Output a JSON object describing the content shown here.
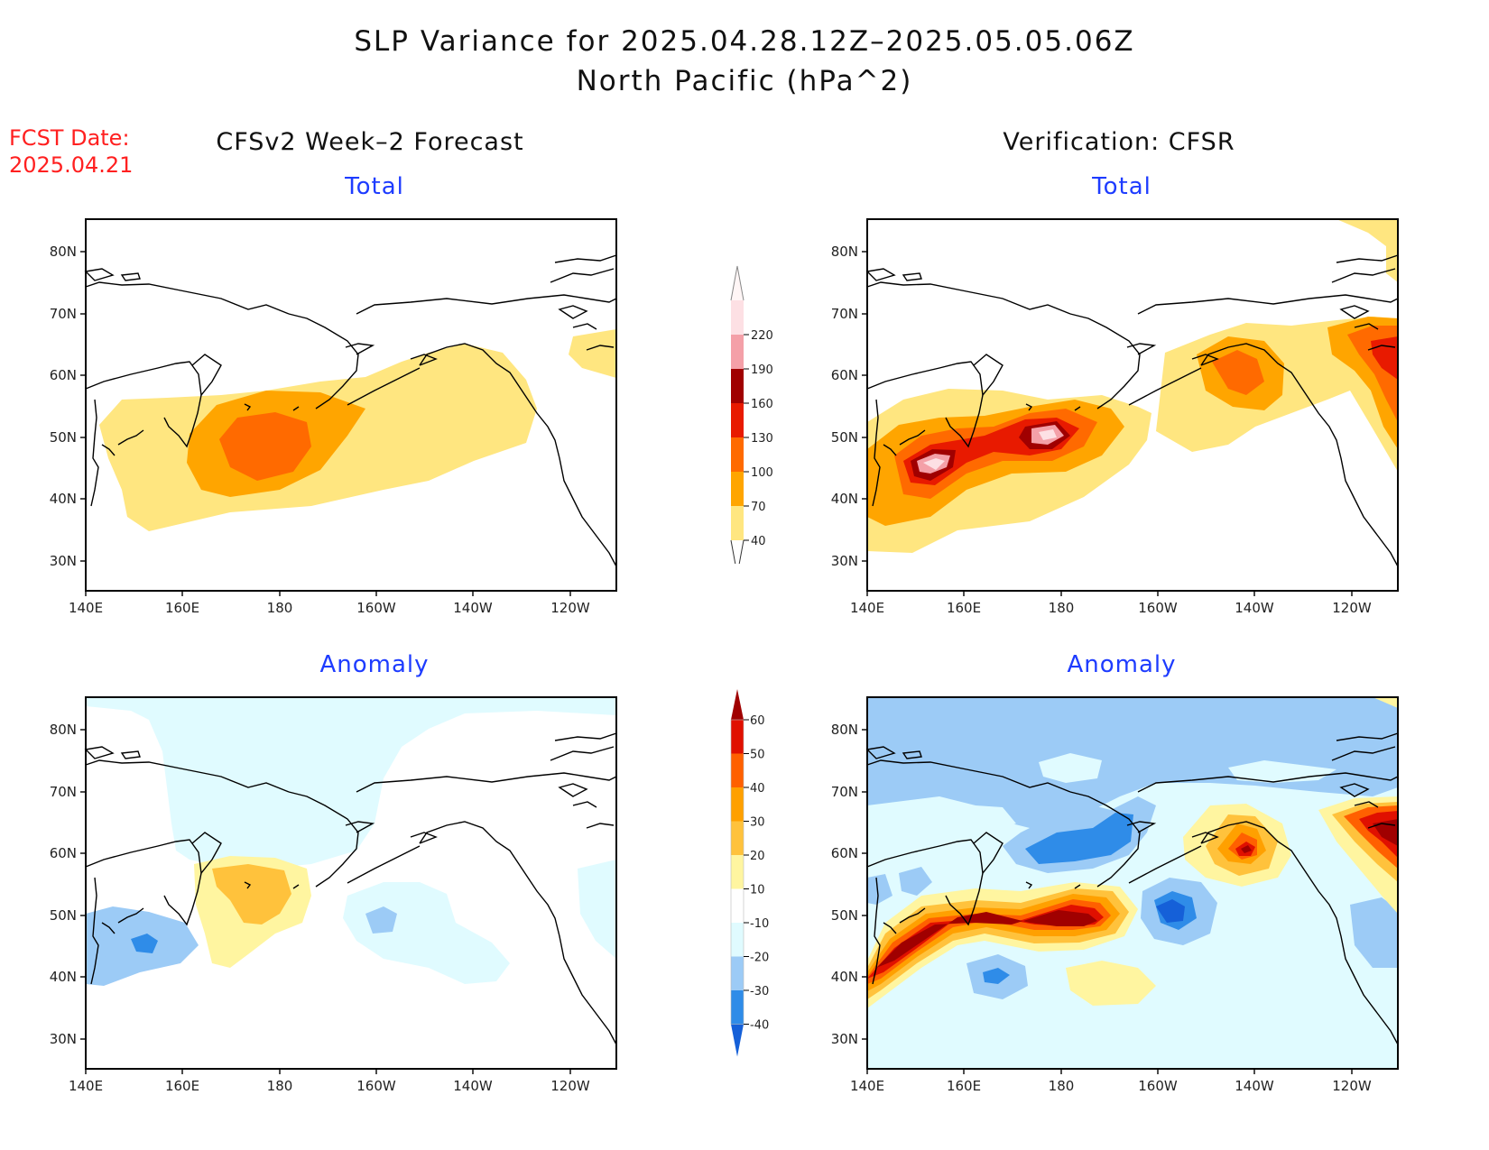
{
  "header": {
    "title_line1": "SLP Variance for 2025.04.28.12Z–2025.05.05.06Z",
    "title_line2": "North Pacific (hPa^2)",
    "fcst_label": "FCST Date:",
    "fcst_date": "2025.04.21"
  },
  "columns": {
    "left_title": "CFSv2 Week–2 Forecast",
    "right_title": "Verification: CFSR"
  },
  "panels": {
    "total_label": "Total",
    "anomaly_label": "Anomaly"
  },
  "axes": {
    "x_ticks": [
      "140E",
      "160E",
      "180",
      "160W",
      "140W",
      "120W"
    ],
    "y_ticks": [
      "80N",
      "70N",
      "60N",
      "50N",
      "40N",
      "30N"
    ]
  },
  "colorbars": {
    "total": {
      "levels": [
        "40",
        "70",
        "100",
        "130",
        "160",
        "190",
        "220"
      ],
      "colors": [
        "#ffe680",
        "#ffa500",
        "#ff6a00",
        "#e81a00",
        "#a00000",
        "#f4a0a8",
        "#fde0e4"
      ]
    },
    "anomaly": {
      "levels": [
        "-40",
        "-30",
        "-20",
        "-10",
        "10",
        "20",
        "30",
        "40",
        "50",
        "60"
      ],
      "colors": [
        "#1560d8",
        "#2f8ce8",
        "#9ccbf6",
        "#e0fbff",
        "#ffffff",
        "#fff5a0",
        "#ffc23c",
        "#ffa000",
        "#ff6000",
        "#e01000",
        "#a00000"
      ]
    }
  }
}
